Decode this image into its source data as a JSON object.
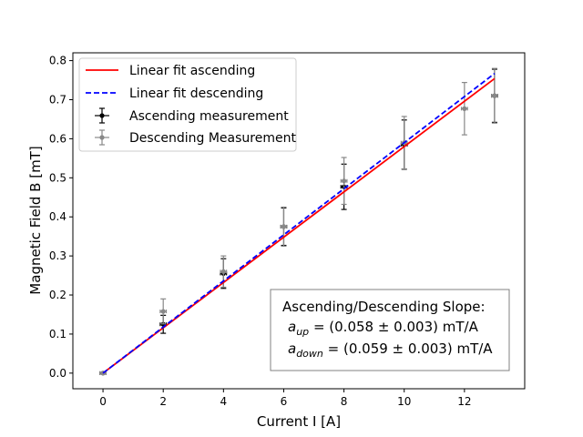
{
  "chart_data": {
    "type": "scatter",
    "xlabel": "Current I [A]",
    "ylabel": "Magnetic Field B [mT]",
    "xlim": [
      -1,
      14
    ],
    "ylim": [
      -0.04,
      0.82
    ],
    "xticks": [
      0,
      2,
      4,
      6,
      8,
      10,
      12
    ],
    "xtick_labels": [
      "0",
      "2",
      "4",
      "6",
      "8",
      "10",
      "12"
    ],
    "yticks": [
      0.0,
      0.1,
      0.2,
      0.3,
      0.4,
      0.5,
      0.6,
      0.7,
      0.8
    ],
    "ytick_labels": [
      "0.0",
      "0.1",
      "0.2",
      "0.3",
      "0.4",
      "0.5",
      "0.6",
      "0.7",
      "0.8"
    ],
    "grid": false,
    "legend_position": "top-left",
    "series": [
      {
        "name": "Linear fit ascending",
        "kind": "line",
        "style": "solid",
        "color": "#ff0000",
        "slope": 0.058,
        "x_range": [
          0,
          13
        ]
      },
      {
        "name": "Linear fit descending",
        "kind": "line",
        "style": "dashed",
        "color": "#0000ff",
        "slope": 0.059,
        "x_range": [
          0,
          13
        ]
      },
      {
        "name": "Ascending measurement",
        "kind": "errorbar",
        "color": "#000000",
        "x": [
          0,
          2,
          4,
          6,
          8,
          10,
          13
        ],
        "y": [
          0.0,
          0.125,
          0.255,
          0.375,
          0.477,
          0.585,
          0.71
        ],
        "yerr": [
          0.0,
          0.023,
          0.038,
          0.048,
          0.058,
          0.063,
          0.068
        ],
        "xerr": [
          0.1,
          0.1,
          0.1,
          0.1,
          0.1,
          0.1,
          0.1
        ]
      },
      {
        "name": "Descending Measurement",
        "kind": "errorbar",
        "color": "#888888",
        "x": [
          0,
          2,
          4,
          6,
          8,
          10,
          12,
          13
        ],
        "y": [
          0.0,
          0.158,
          0.26,
          0.375,
          0.492,
          0.59,
          0.677,
          0.71
        ],
        "yerr": [
          0.0,
          0.032,
          0.04,
          0.05,
          0.06,
          0.067,
          0.067,
          0.07
        ],
        "xerr": [
          0.1,
          0.1,
          0.1,
          0.1,
          0.1,
          0.1,
          0.1,
          0.1
        ]
      }
    ],
    "annotation": {
      "heading": "Ascending/Descending Slope:",
      "up_symbol": "a",
      "up_sub": "up",
      "up_value": " = (0.058 ± 0.003) mT/A",
      "down_symbol": "a",
      "down_sub": "down",
      "down_value": " = (0.059 ± 0.003) mT/A"
    }
  }
}
